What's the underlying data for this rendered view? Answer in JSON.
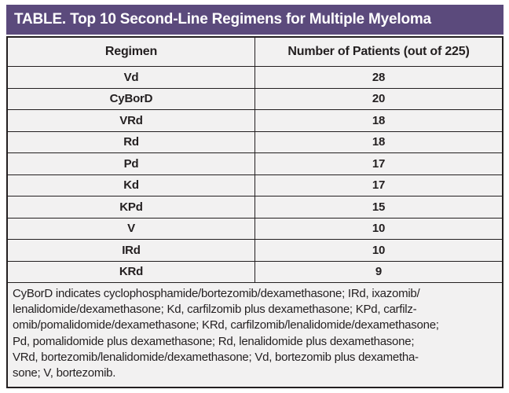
{
  "title": "TABLE. Top 10 Second-Line Regimens for Multiple Myeloma",
  "table": {
    "columns": [
      "Regimen",
      "Number of Patients (out of 225)"
    ],
    "rows": [
      {
        "regimen": "Vd",
        "patients": "28"
      },
      {
        "regimen": "CyBorD",
        "patients": "20"
      },
      {
        "regimen": "VRd",
        "patients": "18"
      },
      {
        "regimen": "Rd",
        "patients": "18"
      },
      {
        "regimen": "Pd",
        "patients": "17"
      },
      {
        "regimen": "Kd",
        "patients": "17"
      },
      {
        "regimen": "KPd",
        "patients": "15"
      },
      {
        "regimen": "V",
        "patients": "10"
      },
      {
        "regimen": "IRd",
        "patients": "10"
      },
      {
        "regimen": "KRd",
        "patients": "9"
      }
    ]
  },
  "footnote_lines": [
    "CyBorD indicates cyclophosphamide/bortezomib/dexamethasone; IRd, ixazomib/",
    "lenalidomide/dexamethasone; Kd, carfilzomib plus dexamethasone; KPd, carfilz-",
    "omib/pomalidomide/dexamethasone; KRd, carfilzomib/lenalidomide/dexamethasone;",
    "Pd, pomalidomide plus dexamethasone; Rd, lenalidomide plus dexamethasone;",
    "VRd, bortezomib/lenalidomide/dexamethasone; Vd, bortezomib plus dexametha-",
    "sone; V, bortezomib."
  ],
  "colors": {
    "title_bar_bg": "#5b4a7c",
    "title_bar_text": "#ffffff",
    "grid_line": "#231f20",
    "cell_background": "#f2f1f1",
    "body_text": "#231f20"
  },
  "chart_data": {
    "type": "table",
    "title": "TABLE. Top 10 Second-Line Regimens for Multiple Myeloma",
    "columns": [
      "Regimen",
      "Number of Patients (out of 225)"
    ],
    "categories": [
      "Vd",
      "CyBorD",
      "VRd",
      "Rd",
      "Pd",
      "Kd",
      "KPd",
      "V",
      "IRd",
      "KRd"
    ],
    "values": [
      28,
      20,
      18,
      18,
      17,
      17,
      15,
      10,
      10,
      9
    ],
    "total_patients": 225
  }
}
